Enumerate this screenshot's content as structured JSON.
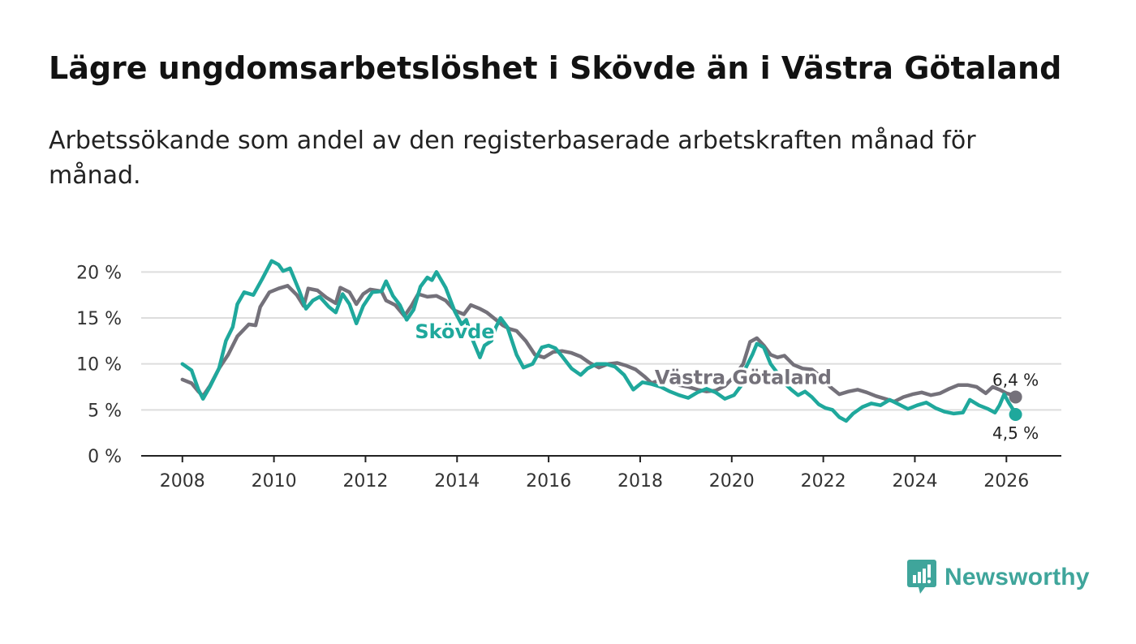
{
  "title": "Lägre ungdomsarbetslöshet i Skövde än i Västra Götaland",
  "subtitle": "Arbetssökande som andel av den registerbaserade arbetskraften månad för månad.",
  "brand": {
    "name": "Newsworthy",
    "icon": "newsworthy-logo-icon"
  },
  "colors": {
    "skovde": "#1fa89c",
    "vg": "#74717a",
    "grid": "#dddddd",
    "axis": "#222222"
  },
  "chart_data": {
    "type": "line",
    "title": "Lägre ungdomsarbetslöshet i Skövde än i Västra Götaland",
    "ylabel": "",
    "xlabel": "",
    "ylim": [
      0,
      22.5
    ],
    "xlim": [
      2007.1,
      2027.2
    ],
    "yticks": [
      0,
      5,
      10,
      15,
      20
    ],
    "ytick_labels": [
      "0 %",
      "5 %",
      "10 %",
      "15 %",
      "20 %"
    ],
    "xticks": [
      2008,
      2010,
      2012,
      2014,
      2016,
      2018,
      2020,
      2022,
      2024,
      2026
    ],
    "xtick_labels": [
      "2008",
      "2010",
      "2012",
      "2014",
      "2016",
      "2018",
      "2020",
      "2022",
      "2024",
      "2026"
    ],
    "series": [
      {
        "name": "Västra Götaland",
        "label": "Västra Götaland",
        "end_label": "6,4 %",
        "end_value": 6.4,
        "points": [
          [
            2008.0,
            8.3
          ],
          [
            2008.2,
            7.9
          ],
          [
            2008.35,
            7.0
          ],
          [
            2008.45,
            6.5
          ],
          [
            2008.6,
            7.6
          ],
          [
            2008.8,
            9.5
          ],
          [
            2009.0,
            11.0
          ],
          [
            2009.2,
            13.0
          ],
          [
            2009.45,
            14.3
          ],
          [
            2009.6,
            14.2
          ],
          [
            2009.7,
            16.2
          ],
          [
            2009.9,
            17.8
          ],
          [
            2010.1,
            18.2
          ],
          [
            2010.3,
            18.5
          ],
          [
            2010.5,
            17.5
          ],
          [
            2010.65,
            16.3
          ],
          [
            2010.75,
            18.2
          ],
          [
            2010.95,
            18.0
          ],
          [
            2011.15,
            17.2
          ],
          [
            2011.35,
            16.6
          ],
          [
            2011.45,
            18.3
          ],
          [
            2011.65,
            17.8
          ],
          [
            2011.8,
            16.5
          ],
          [
            2011.95,
            17.6
          ],
          [
            2012.1,
            18.1
          ],
          [
            2012.35,
            17.9
          ],
          [
            2012.45,
            16.9
          ],
          [
            2012.65,
            16.4
          ],
          [
            2012.85,
            15.2
          ],
          [
            2013.0,
            16.3
          ],
          [
            2013.15,
            17.6
          ],
          [
            2013.35,
            17.3
          ],
          [
            2013.55,
            17.4
          ],
          [
            2013.75,
            16.9
          ],
          [
            2013.95,
            15.8
          ],
          [
            2014.15,
            15.4
          ],
          [
            2014.3,
            16.4
          ],
          [
            2014.5,
            16.0
          ],
          [
            2014.65,
            15.6
          ],
          [
            2014.85,
            14.8
          ],
          [
            2015.0,
            14.2
          ],
          [
            2015.15,
            13.8
          ],
          [
            2015.3,
            13.6
          ],
          [
            2015.5,
            12.5
          ],
          [
            2015.7,
            11.0
          ],
          [
            2015.9,
            10.7
          ],
          [
            2016.1,
            11.3
          ],
          [
            2016.3,
            11.4
          ],
          [
            2016.5,
            11.2
          ],
          [
            2016.7,
            10.8
          ],
          [
            2016.9,
            10.1
          ],
          [
            2017.1,
            9.6
          ],
          [
            2017.3,
            10.0
          ],
          [
            2017.5,
            10.1
          ],
          [
            2017.7,
            9.8
          ],
          [
            2017.9,
            9.4
          ],
          [
            2018.1,
            8.6
          ],
          [
            2018.25,
            7.9
          ],
          [
            2018.45,
            8.3
          ],
          [
            2018.65,
            8.1
          ],
          [
            2018.85,
            7.7
          ],
          [
            2019.05,
            7.5
          ],
          [
            2019.25,
            7.2
          ],
          [
            2019.45,
            7.0
          ],
          [
            2019.65,
            7.1
          ],
          [
            2019.85,
            7.6
          ],
          [
            2020.05,
            8.6
          ],
          [
            2020.25,
            10.0
          ],
          [
            2020.4,
            12.4
          ],
          [
            2020.55,
            12.8
          ],
          [
            2020.7,
            12.0
          ],
          [
            2020.85,
            11.0
          ],
          [
            2021.0,
            10.7
          ],
          [
            2021.15,
            10.9
          ],
          [
            2021.35,
            9.9
          ],
          [
            2021.55,
            9.5
          ],
          [
            2021.75,
            9.4
          ],
          [
            2021.95,
            8.6
          ],
          [
            2022.15,
            7.5
          ],
          [
            2022.35,
            6.7
          ],
          [
            2022.55,
            7.0
          ],
          [
            2022.75,
            7.2
          ],
          [
            2022.95,
            6.9
          ],
          [
            2023.15,
            6.5
          ],
          [
            2023.35,
            6.2
          ],
          [
            2023.55,
            5.9
          ],
          [
            2023.75,
            6.4
          ],
          [
            2023.95,
            6.7
          ],
          [
            2024.15,
            6.9
          ],
          [
            2024.35,
            6.6
          ],
          [
            2024.55,
            6.8
          ],
          [
            2024.75,
            7.3
          ],
          [
            2024.95,
            7.7
          ],
          [
            2025.15,
            7.7
          ],
          [
            2025.35,
            7.5
          ],
          [
            2025.55,
            6.8
          ],
          [
            2025.7,
            7.5
          ],
          [
            2025.85,
            7.2
          ],
          [
            2026.0,
            6.8
          ],
          [
            2026.15,
            6.6
          ],
          [
            2026.2,
            6.4
          ]
        ]
      },
      {
        "name": "Skövde",
        "label": "Skövde",
        "end_label": "4,5 %",
        "end_value": 4.5,
        "points": [
          [
            2008.0,
            10.0
          ],
          [
            2008.2,
            9.3
          ],
          [
            2008.35,
            7.2
          ],
          [
            2008.45,
            6.2
          ],
          [
            2008.6,
            7.5
          ],
          [
            2008.8,
            9.5
          ],
          [
            2008.95,
            12.5
          ],
          [
            2009.1,
            14.0
          ],
          [
            2009.2,
            16.5
          ],
          [
            2009.35,
            17.8
          ],
          [
            2009.55,
            17.5
          ],
          [
            2009.75,
            19.3
          ],
          [
            2009.95,
            21.2
          ],
          [
            2010.1,
            20.8
          ],
          [
            2010.2,
            20.1
          ],
          [
            2010.35,
            20.4
          ],
          [
            2010.55,
            18.0
          ],
          [
            2010.7,
            16.0
          ],
          [
            2010.85,
            16.9
          ],
          [
            2011.0,
            17.3
          ],
          [
            2011.2,
            16.2
          ],
          [
            2011.35,
            15.6
          ],
          [
            2011.5,
            17.6
          ],
          [
            2011.65,
            16.5
          ],
          [
            2011.8,
            14.4
          ],
          [
            2011.95,
            16.3
          ],
          [
            2012.15,
            17.8
          ],
          [
            2012.35,
            17.9
          ],
          [
            2012.45,
            19.0
          ],
          [
            2012.6,
            17.4
          ],
          [
            2012.75,
            16.4
          ],
          [
            2012.9,
            14.8
          ],
          [
            2013.05,
            15.9
          ],
          [
            2013.2,
            18.4
          ],
          [
            2013.35,
            19.4
          ],
          [
            2013.45,
            19.1
          ],
          [
            2013.55,
            20.0
          ],
          [
            2013.75,
            18.3
          ],
          [
            2013.95,
            15.7
          ],
          [
            2014.1,
            14.3
          ],
          [
            2014.2,
            14.8
          ],
          [
            2014.35,
            12.5
          ],
          [
            2014.5,
            10.7
          ],
          [
            2014.6,
            12.0
          ],
          [
            2014.75,
            12.5
          ],
          [
            2014.85,
            14.0
          ],
          [
            2014.95,
            15.0
          ],
          [
            2015.1,
            14.0
          ],
          [
            2015.3,
            11.0
          ],
          [
            2015.45,
            9.6
          ],
          [
            2015.65,
            10.0
          ],
          [
            2015.85,
            11.8
          ],
          [
            2016.0,
            12.0
          ],
          [
            2016.15,
            11.7
          ],
          [
            2016.3,
            10.8
          ],
          [
            2016.5,
            9.5
          ],
          [
            2016.7,
            8.8
          ],
          [
            2016.85,
            9.5
          ],
          [
            2017.05,
            10.0
          ],
          [
            2017.25,
            10.0
          ],
          [
            2017.45,
            9.7
          ],
          [
            2017.65,
            8.8
          ],
          [
            2017.85,
            7.2
          ],
          [
            2018.05,
            8.0
          ],
          [
            2018.25,
            7.8
          ],
          [
            2018.45,
            7.5
          ],
          [
            2018.65,
            7.0
          ],
          [
            2018.85,
            6.6
          ],
          [
            2019.05,
            6.3
          ],
          [
            2019.25,
            6.9
          ],
          [
            2019.45,
            7.3
          ],
          [
            2019.65,
            6.9
          ],
          [
            2019.85,
            6.2
          ],
          [
            2020.05,
            6.6
          ],
          [
            2020.2,
            7.6
          ],
          [
            2020.3,
            9.5
          ],
          [
            2020.45,
            11.0
          ],
          [
            2020.55,
            12.2
          ],
          [
            2020.7,
            11.8
          ],
          [
            2020.85,
            10.0
          ],
          [
            2021.0,
            9.0
          ],
          [
            2021.15,
            7.9
          ],
          [
            2021.3,
            7.2
          ],
          [
            2021.45,
            6.6
          ],
          [
            2021.6,
            7.0
          ],
          [
            2021.75,
            6.4
          ],
          [
            2021.9,
            5.6
          ],
          [
            2022.05,
            5.2
          ],
          [
            2022.2,
            5.0
          ],
          [
            2022.35,
            4.2
          ],
          [
            2022.5,
            3.8
          ],
          [
            2022.65,
            4.6
          ],
          [
            2022.85,
            5.3
          ],
          [
            2023.05,
            5.7
          ],
          [
            2023.25,
            5.5
          ],
          [
            2023.45,
            6.1
          ],
          [
            2023.65,
            5.6
          ],
          [
            2023.85,
            5.1
          ],
          [
            2024.05,
            5.5
          ],
          [
            2024.25,
            5.8
          ],
          [
            2024.45,
            5.2
          ],
          [
            2024.65,
            4.8
          ],
          [
            2024.85,
            4.6
          ],
          [
            2025.05,
            4.7
          ],
          [
            2025.2,
            6.1
          ],
          [
            2025.4,
            5.5
          ],
          [
            2025.6,
            5.1
          ],
          [
            2025.75,
            4.7
          ],
          [
            2025.85,
            5.5
          ],
          [
            2025.95,
            6.7
          ],
          [
            2026.05,
            5.8
          ],
          [
            2026.15,
            5.0
          ],
          [
            2026.2,
            4.5
          ]
        ]
      }
    ]
  }
}
